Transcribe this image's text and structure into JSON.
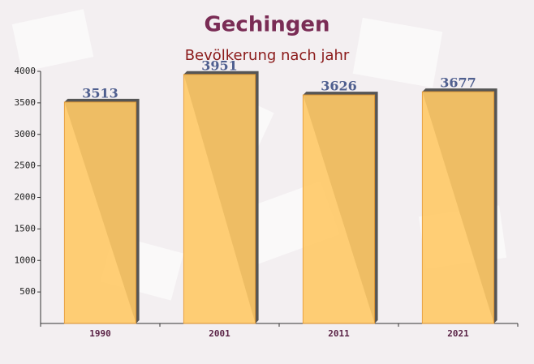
{
  "chart_data": {
    "type": "bar",
    "title": "Gechingen",
    "subtitle": "Bevölkerung nach jahr",
    "categories": [
      "1990",
      "2001",
      "2011",
      "2021"
    ],
    "values": [
      3513,
      3951,
      3626,
      3677
    ],
    "color": "#ffc966",
    "ylim": [
      0,
      4000
    ],
    "yticks": [
      500,
      1000,
      1500,
      2000,
      2500,
      3000,
      3500,
      4000
    ]
  }
}
